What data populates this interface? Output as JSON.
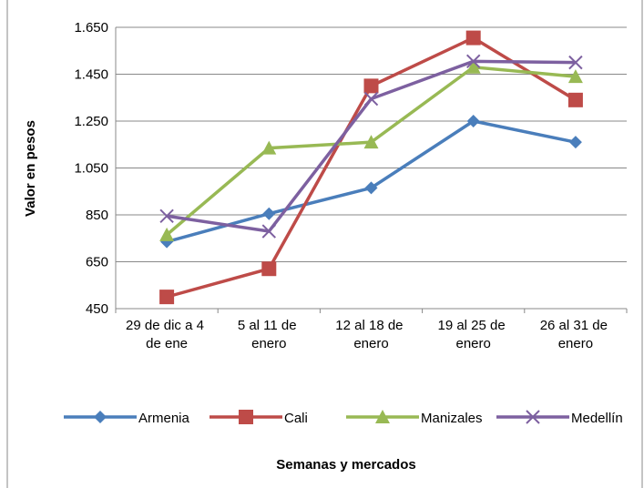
{
  "chart_data": {
    "type": "line",
    "y_label": "Valor en pesos",
    "x_label": "Semanas y mercados",
    "categories": [
      "29 de dic a 4 de ene",
      "5 al 11 de enero",
      "12 al 18 de enero",
      "19 al 25 de enero",
      "26 al 31 de enero"
    ],
    "series": [
      {
        "name": "Armenia",
        "color": "#4a7ebb",
        "marker": "diamond",
        "values": [
          735,
          855,
          965,
          1250,
          1160
        ]
      },
      {
        "name": "Cali",
        "color": "#be4b48",
        "marker": "square",
        "values": [
          500,
          620,
          1400,
          1605,
          1340
        ]
      },
      {
        "name": "Manizales",
        "color": "#98b954",
        "marker": "triangle",
        "values": [
          765,
          1135,
          1160,
          1480,
          1440
        ]
      },
      {
        "name": "Medellín",
        "color": "#7d60a0",
        "marker": "x",
        "values": [
          845,
          780,
          1345,
          1505,
          1500
        ]
      }
    ],
    "ylim": [
      450,
      1650
    ],
    "yticks": [
      450,
      650,
      850,
      {
        "value": 1050,
        "label": "1.050"
      },
      {
        "value": 1250,
        "label": "1.250"
      },
      {
        "value": 1450,
        "label": "1.450"
      },
      {
        "value": 1650,
        "label": "1.650"
      }
    ],
    "grid": true,
    "legend": "bottom"
  }
}
